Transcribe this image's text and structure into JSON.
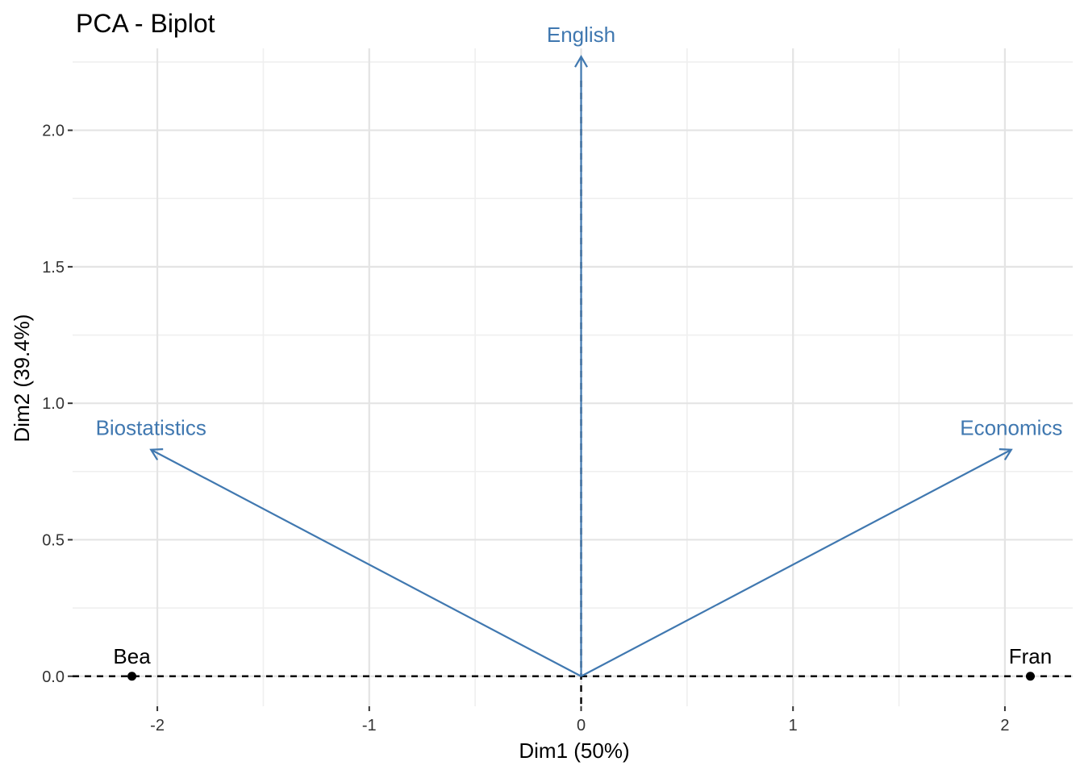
{
  "chart_data": {
    "type": "scatter",
    "title": "PCA - Biplot",
    "xlabel": "Dim1 (50%)",
    "ylabel": "Dim2 (39.4%)",
    "xlim": [
      -2.4,
      2.32
    ],
    "ylim": [
      -0.11,
      2.3
    ],
    "x_ticks": [
      {
        "value": -2,
        "label": "-2"
      },
      {
        "value": -1,
        "label": "-1"
      },
      {
        "value": 0,
        "label": "0"
      },
      {
        "value": 1,
        "label": "1"
      },
      {
        "value": 2,
        "label": "2"
      }
    ],
    "y_ticks": [
      {
        "value": 0,
        "label": "0.0"
      },
      {
        "value": 0.5,
        "label": "0.5"
      },
      {
        "value": 1,
        "label": "1.0"
      },
      {
        "value": 1.5,
        "label": "1.5"
      },
      {
        "value": 2,
        "label": "2.0"
      }
    ],
    "grid": true,
    "individuals": [
      {
        "name": "Bea",
        "x": -2.12,
        "y": 0
      },
      {
        "name": "Fran",
        "x": 2.12,
        "y": 0
      }
    ],
    "variables": [
      {
        "name": "Biostatistics",
        "x": -2.03,
        "y": 0.83
      },
      {
        "name": "English",
        "x": 0,
        "y": 2.27
      },
      {
        "name": "Economics",
        "x": 2.03,
        "y": 0.83
      }
    ],
    "reference_lines": {
      "x": 0,
      "y": 0
    },
    "colors": {
      "variables": "#4078b0",
      "individuals": "#000000",
      "grid_major": "#e4e4e4",
      "grid_minor": "#efefef"
    }
  }
}
